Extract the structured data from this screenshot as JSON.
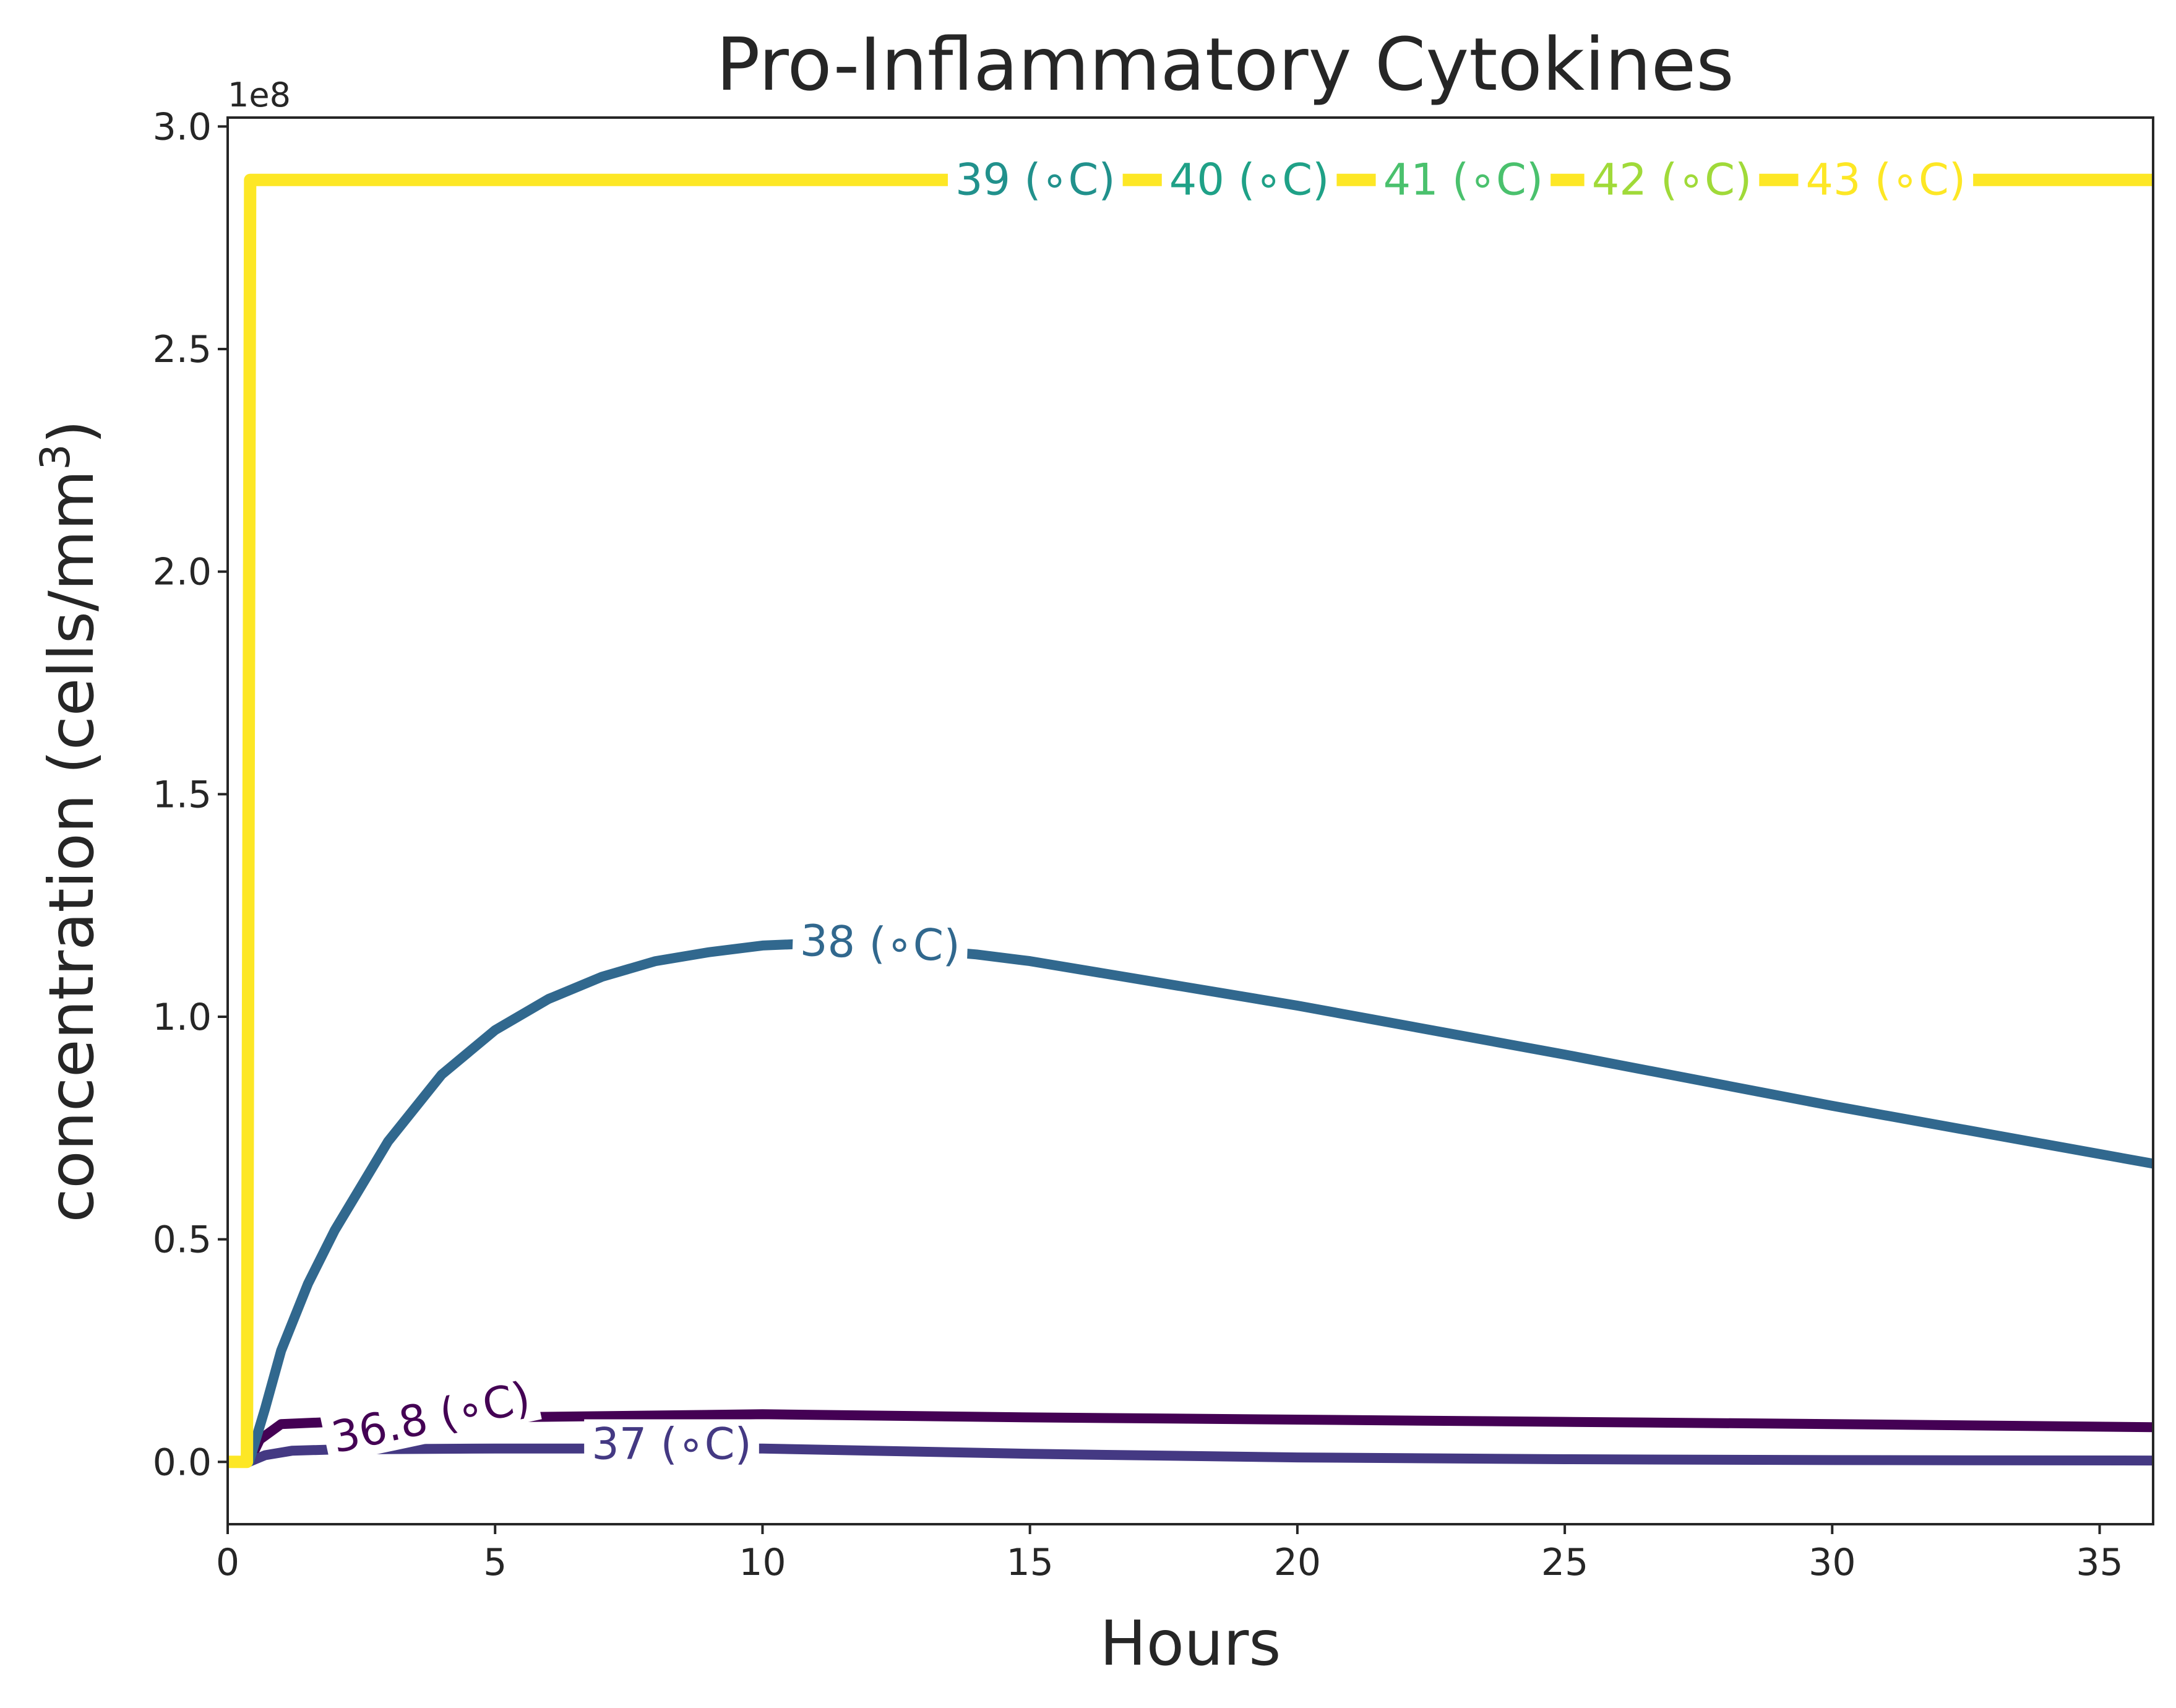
{
  "chart_data": {
    "type": "line",
    "title": "Pro-Inflammatory Cytokines",
    "xlabel": "Hours",
    "ylabel": "concentration (cells/mm",
    "ylabel_sup": "3",
    "ylabel_close": ")",
    "y_offset_label": "1e8",
    "xlim": [
      0,
      36
    ],
    "ylim": [
      -0.14,
      3.02
    ],
    "xticks": [
      0,
      5,
      10,
      15,
      20,
      25,
      30,
      35
    ],
    "xtick_labels": [
      "0",
      "5",
      "10",
      "15",
      "20",
      "25",
      "30",
      "35"
    ],
    "yticks": [
      0.0,
      0.5,
      1.0,
      1.5,
      2.0,
      2.5,
      3.0
    ],
    "ytick_labels": [
      "0.0",
      "0.5",
      "1.0",
      "1.5",
      "2.0",
      "2.5",
      "3.0"
    ],
    "grid": false,
    "legend": "inline labels",
    "series": [
      {
        "name": "36.8 (∘C)",
        "color": "#440154",
        "x": [
          0,
          0.4,
          0.6,
          1.0,
          2,
          5,
          10,
          15,
          20,
          25,
          30,
          36
        ],
        "y": [
          0,
          0,
          0.05,
          0.085,
          0.09,
          0.1,
          0.107,
          0.1,
          0.095,
          0.09,
          0.085,
          0.078
        ]
      },
      {
        "name": "37 (∘C)",
        "color": "#443983",
        "x": [
          0,
          0.4,
          0.7,
          1.2,
          2,
          5,
          10,
          15,
          20,
          25,
          30,
          36
        ],
        "y": [
          0,
          0,
          0.015,
          0.025,
          0.028,
          0.03,
          0.03,
          0.018,
          0.01,
          0.006,
          0.004,
          0.003
        ]
      },
      {
        "name": "38 (∘C)",
        "color": "#31688e",
        "x": [
          0,
          0.4,
          0.7,
          1,
          1.5,
          2,
          3,
          4,
          5,
          6,
          7,
          8,
          9,
          10,
          11,
          12,
          13,
          14,
          15,
          20,
          25,
          30,
          36
        ],
        "y": [
          0,
          0,
          0.12,
          0.25,
          0.4,
          0.52,
          0.72,
          0.87,
          0.97,
          1.04,
          1.09,
          1.125,
          1.145,
          1.16,
          1.165,
          1.16,
          1.15,
          1.14,
          1.125,
          1.025,
          0.915,
          0.8,
          0.67
        ]
      },
      {
        "name": "39 (∘C)",
        "color": "#21918c",
        "x": [
          0,
          0.36,
          0.44,
          36
        ],
        "y": [
          0,
          0,
          2.88,
          2.88
        ]
      },
      {
        "name": "40 (∘C)",
        "color": "#1fa187",
        "x": [
          0,
          0.36,
          0.43,
          36
        ],
        "y": [
          0,
          0,
          2.88,
          2.88
        ]
      },
      {
        "name": "41 (∘C)",
        "color": "#4ac16d",
        "x": [
          0,
          0.36,
          0.43,
          36
        ],
        "y": [
          0,
          0,
          2.88,
          2.88
        ]
      },
      {
        "name": "42 (∘C)",
        "color": "#a0da39",
        "x": [
          0,
          0.36,
          0.42,
          36
        ],
        "y": [
          0,
          0,
          2.88,
          2.88
        ]
      },
      {
        "name": "43 (∘C)",
        "color": "#fde725",
        "x": [
          0,
          0.36,
          0.42,
          36
        ],
        "y": [
          0,
          0,
          2.88,
          2.88
        ]
      }
    ],
    "annotations": [
      {
        "text": "36.8 (∘C)",
        "series": 0,
        "x": 3.8,
        "y": 0.1,
        "angle": -12
      },
      {
        "text": "37 (∘C)",
        "series": 1,
        "x": 8.3,
        "y": 0.04,
        "angle": 0
      },
      {
        "text": "38 (∘C)",
        "series": 2,
        "x": 12.2,
        "y": 1.165,
        "angle": 2
      },
      {
        "text": "39 (∘C)",
        "series": 3,
        "x": 15.1,
        "y": 2.88,
        "angle": 0
      },
      {
        "text": "40 (∘C)",
        "series": 4,
        "x": 19.1,
        "y": 2.88,
        "angle": 0
      },
      {
        "text": "41 (∘C)",
        "series": 5,
        "x": 23.1,
        "y": 2.88,
        "angle": 0
      },
      {
        "text": "42 (∘C)",
        "series": 6,
        "x": 27.0,
        "y": 2.88,
        "angle": 0
      },
      {
        "text": "43 (∘C)",
        "series": 7,
        "x": 31.0,
        "y": 2.88,
        "angle": 0
      }
    ]
  }
}
